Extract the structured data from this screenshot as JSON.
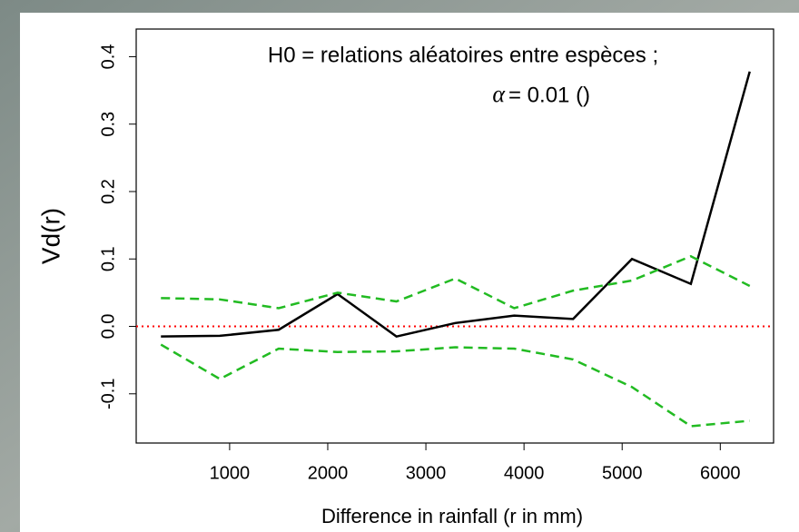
{
  "chart_data": {
    "type": "line",
    "annotation": {
      "line1": "H0 = relations aléatoires entre espèces ;",
      "symbol": "α",
      "line2": "= 0.01 ()"
    },
    "x_label": "Difference in rainfall (r in mm)",
    "y_label": "Vd(r)",
    "x": [
      300,
      900,
      1500,
      2100,
      2700,
      3300,
      3900,
      4500,
      5100,
      5700,
      6300
    ],
    "series": [
      {
        "color": "#000000",
        "dash": "solid",
        "values": [
          -0.015,
          -0.014,
          -0.005,
          0.048,
          -0.015,
          0.005,
          0.016,
          0.011,
          0.1,
          0.063,
          0.378
        ]
      },
      {
        "color": "#22bb22",
        "dash": "dashed",
        "values": [
          0.042,
          0.04,
          0.027,
          0.05,
          0.037,
          0.071,
          0.027,
          0.053,
          0.068,
          0.104,
          0.06
        ]
      },
      {
        "color": "#22bb22",
        "dash": "dashed",
        "values": [
          -0.027,
          -0.078,
          -0.033,
          -0.038,
          -0.037,
          -0.031,
          -0.033,
          -0.049,
          -0.09,
          -0.148,
          -0.14
        ]
      }
    ],
    "reference_line": {
      "value": 0,
      "color": "#ff0000"
    },
    "xlim": [
      48,
      6543
    ],
    "ylim": [
      -0.173,
      0.441
    ],
    "xticks": [
      1000,
      2000,
      3000,
      4000,
      5000,
      6000
    ],
    "yticks": [
      -0.1,
      {
        "value": 0,
        "label": "0.0"
      },
      0.1,
      0.2,
      0.3,
      0.4
    ]
  }
}
